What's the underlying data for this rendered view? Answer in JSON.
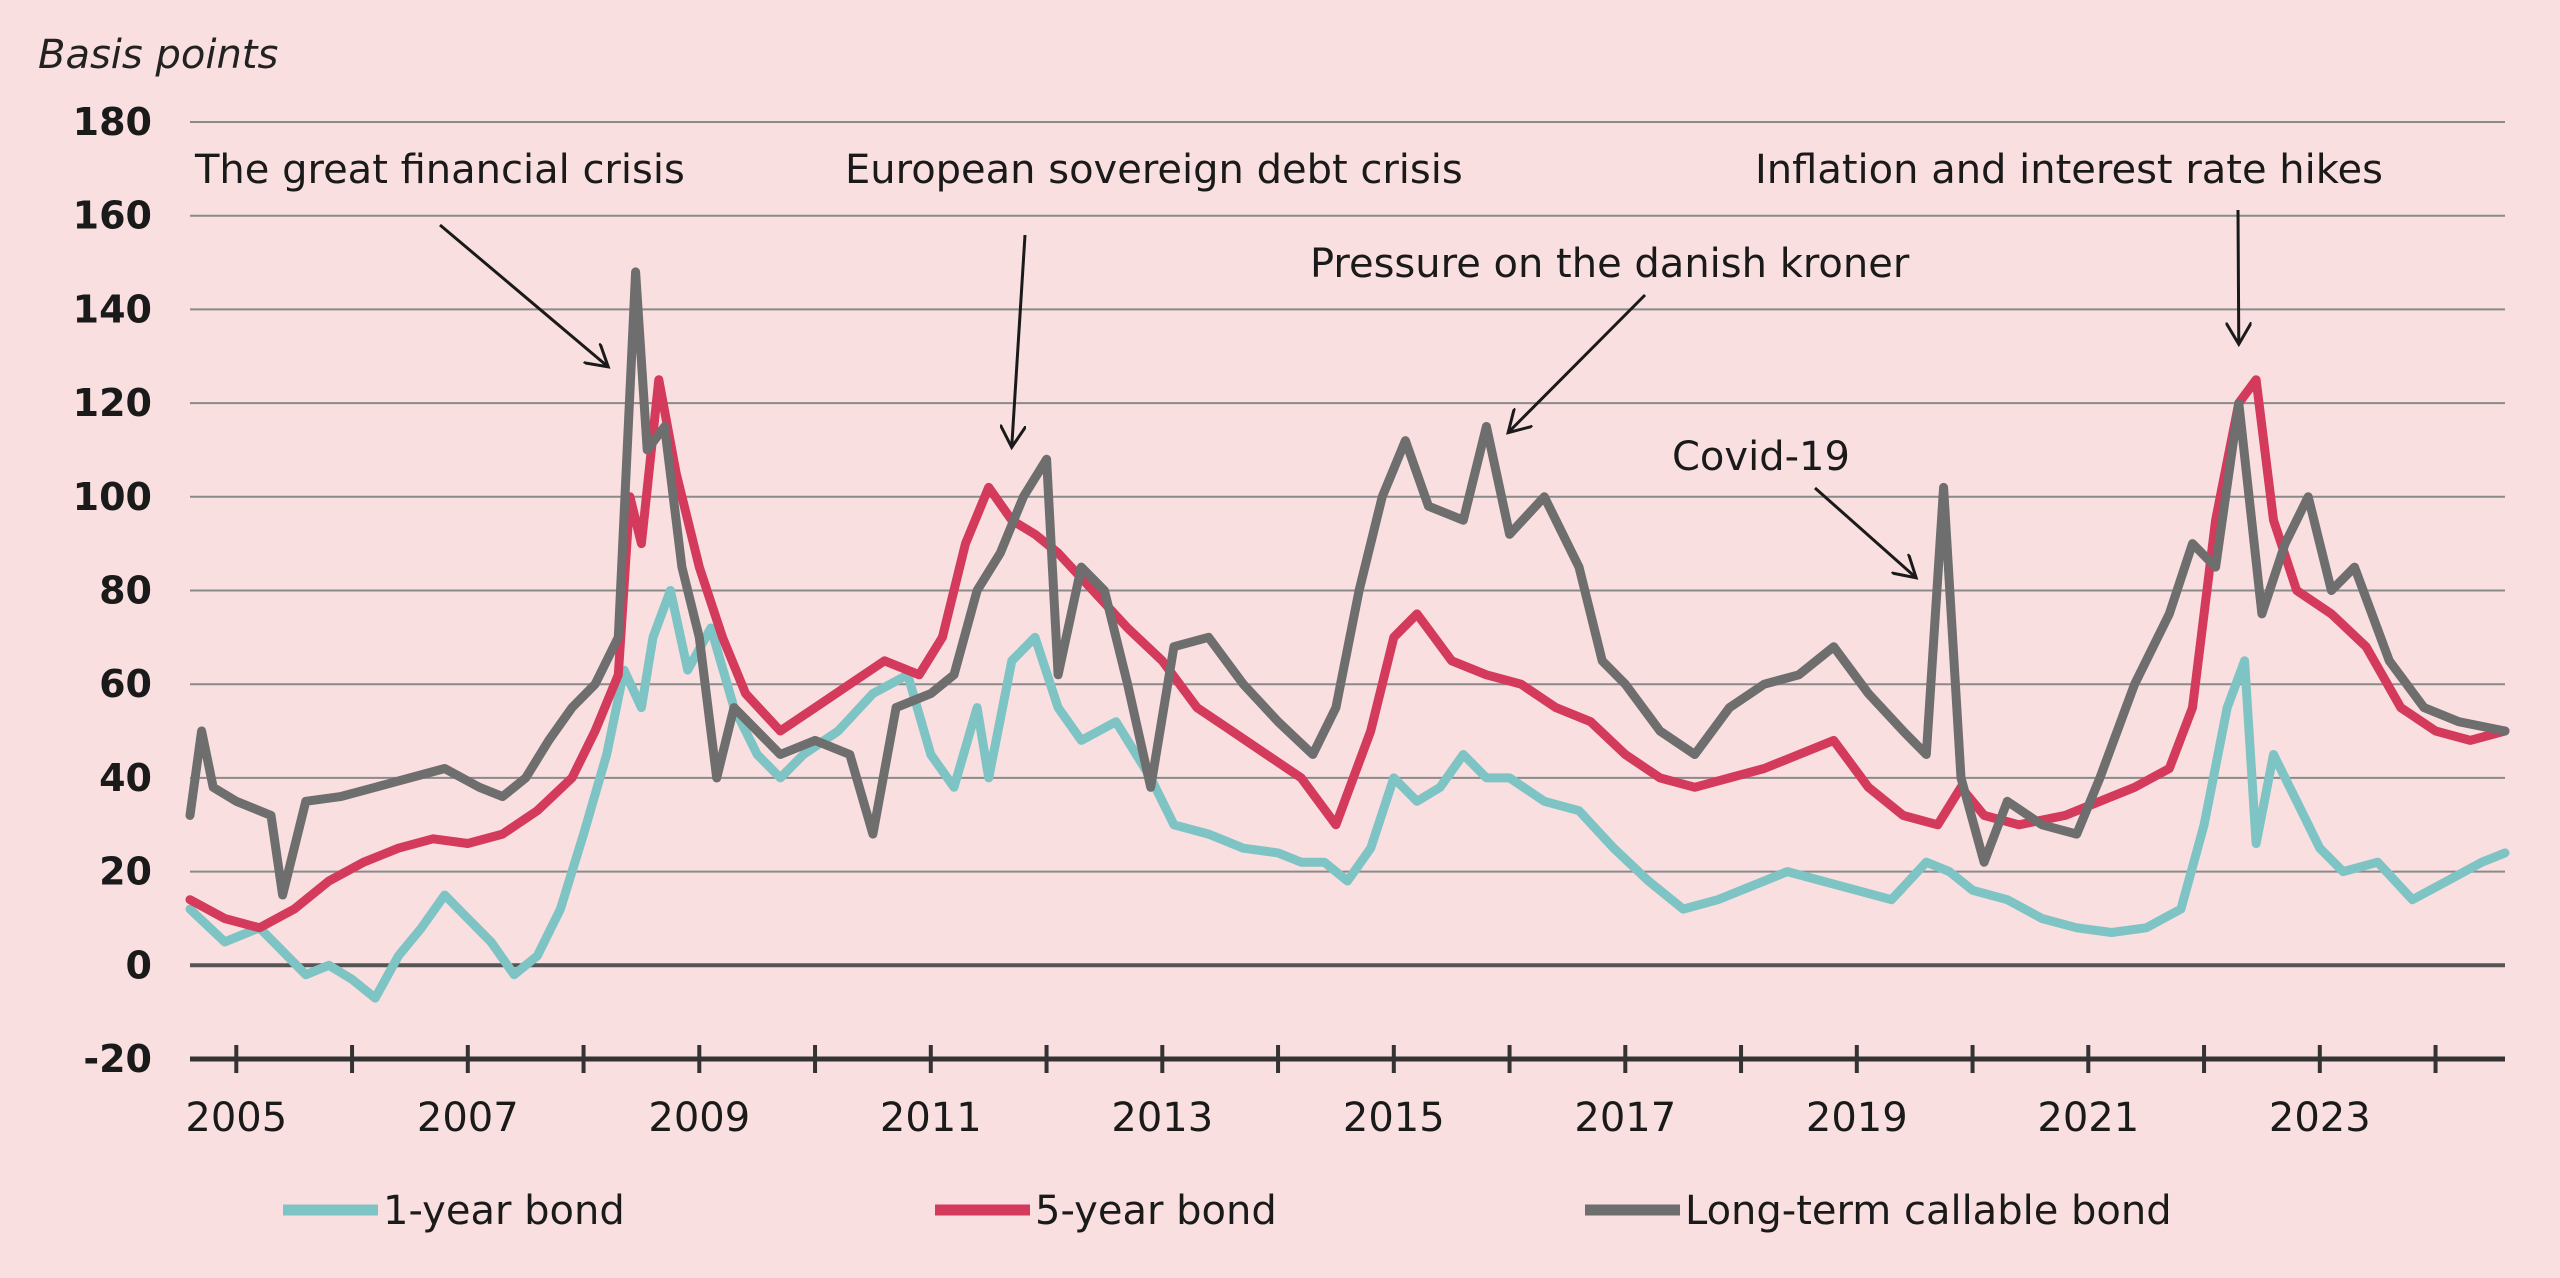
{
  "chart_data": {
    "type": "line",
    "ylabel": "Basis points",
    "ylim": [
      -20,
      180
    ],
    "yticks": [
      -20,
      0,
      20,
      40,
      60,
      80,
      100,
      120,
      140,
      160,
      180
    ],
    "xlim": [
      2004.6,
      2024.6
    ],
    "xticks": [
      "2005",
      "2007",
      "2009",
      "2011",
      "2013",
      "2015",
      "2017",
      "2019",
      "2021",
      "2023"
    ],
    "grid": true,
    "legend": "bottom",
    "colors": {
      "1-year bond": "#7ec4c4",
      "5-year bond": "#d43a5b",
      "Long-term callable bond": "#6e6e6e"
    },
    "annotations": [
      {
        "text": "The great financial crisis",
        "arrow_to": [
          2008.2,
          128
        ]
      },
      {
        "text": "European sovereign debt crisis",
        "arrow_to": [
          2011.7,
          111
        ]
      },
      {
        "text": "Pressure on the danish kroner",
        "arrow_to": [
          2016.0,
          114
        ]
      },
      {
        "text": "Covid-19",
        "arrow_to": [
          2019.5,
          83
        ]
      },
      {
        "text": "Inflation and interest rate hikes",
        "arrow_to": [
          2022.3,
          133
        ]
      }
    ],
    "series": [
      {
        "name": "1-year bond",
        "points": [
          [
            2004.6,
            12
          ],
          [
            2004.9,
            5
          ],
          [
            2005.2,
            8
          ],
          [
            2005.4,
            3
          ],
          [
            2005.6,
            -2
          ],
          [
            2005.8,
            0
          ],
          [
            2006.0,
            -3
          ],
          [
            2006.2,
            -7
          ],
          [
            2006.4,
            2
          ],
          [
            2006.6,
            8
          ],
          [
            2006.8,
            15
          ],
          [
            2007.0,
            10
          ],
          [
            2007.2,
            5
          ],
          [
            2007.4,
            -2
          ],
          [
            2007.6,
            2
          ],
          [
            2007.8,
            12
          ],
          [
            2008.0,
            28
          ],
          [
            2008.2,
            45
          ],
          [
            2008.35,
            63
          ],
          [
            2008.5,
            55
          ],
          [
            2008.6,
            70
          ],
          [
            2008.75,
            80
          ],
          [
            2008.9,
            63
          ],
          [
            2009.1,
            72
          ],
          [
            2009.3,
            55
          ],
          [
            2009.5,
            45
          ],
          [
            2009.7,
            40
          ],
          [
            2009.9,
            45
          ],
          [
            2010.2,
            50
          ],
          [
            2010.5,
            58
          ],
          [
            2010.8,
            62
          ],
          [
            2011.0,
            45
          ],
          [
            2011.2,
            38
          ],
          [
            2011.4,
            55
          ],
          [
            2011.5,
            40
          ],
          [
            2011.7,
            65
          ],
          [
            2011.9,
            70
          ],
          [
            2012.1,
            55
          ],
          [
            2012.3,
            48
          ],
          [
            2012.6,
            52
          ],
          [
            2012.9,
            40
          ],
          [
            2013.1,
            30
          ],
          [
            2013.4,
            28
          ],
          [
            2013.7,
            25
          ],
          [
            2014.0,
            24
          ],
          [
            2014.2,
            22
          ],
          [
            2014.4,
            22
          ],
          [
            2014.6,
            18
          ],
          [
            2014.8,
            25
          ],
          [
            2015.0,
            40
          ],
          [
            2015.2,
            35
          ],
          [
            2015.4,
            38
          ],
          [
            2015.6,
            45
          ],
          [
            2015.8,
            40
          ],
          [
            2016.0,
            40
          ],
          [
            2016.3,
            35
          ],
          [
            2016.6,
            33
          ],
          [
            2016.9,
            25
          ],
          [
            2017.2,
            18
          ],
          [
            2017.5,
            12
          ],
          [
            2017.8,
            14
          ],
          [
            2018.1,
            17
          ],
          [
            2018.4,
            20
          ],
          [
            2018.7,
            18
          ],
          [
            2019.0,
            16
          ],
          [
            2019.3,
            14
          ],
          [
            2019.6,
            22
          ],
          [
            2019.8,
            20
          ],
          [
            2020.0,
            16
          ],
          [
            2020.3,
            14
          ],
          [
            2020.6,
            10
          ],
          [
            2020.9,
            8
          ],
          [
            2021.2,
            7
          ],
          [
            2021.5,
            8
          ],
          [
            2021.8,
            12
          ],
          [
            2022.0,
            30
          ],
          [
            2022.2,
            55
          ],
          [
            2022.35,
            65
          ],
          [
            2022.45,
            26
          ],
          [
            2022.6,
            45
          ],
          [
            2022.8,
            35
          ],
          [
            2023.0,
            25
          ],
          [
            2023.2,
            20
          ],
          [
            2023.5,
            22
          ],
          [
            2023.8,
            14
          ],
          [
            2024.1,
            18
          ],
          [
            2024.4,
            22
          ],
          [
            2024.6,
            24
          ]
        ]
      },
      {
        "name": "5-year bond",
        "points": [
          [
            2004.6,
            14
          ],
          [
            2004.9,
            10
          ],
          [
            2005.2,
            8
          ],
          [
            2005.5,
            12
          ],
          [
            2005.8,
            18
          ],
          [
            2006.1,
            22
          ],
          [
            2006.4,
            25
          ],
          [
            2006.7,
            27
          ],
          [
            2007.0,
            26
          ],
          [
            2007.3,
            28
          ],
          [
            2007.6,
            33
          ],
          [
            2007.9,
            40
          ],
          [
            2008.1,
            50
          ],
          [
            2008.3,
            62
          ],
          [
            2008.4,
            100
          ],
          [
            2008.5,
            90
          ],
          [
            2008.65,
            125
          ],
          [
            2008.8,
            105
          ],
          [
            2009.0,
            85
          ],
          [
            2009.2,
            70
          ],
          [
            2009.4,
            58
          ],
          [
            2009.7,
            50
          ],
          [
            2010.0,
            55
          ],
          [
            2010.3,
            60
          ],
          [
            2010.6,
            65
          ],
          [
            2010.9,
            62
          ],
          [
            2011.1,
            70
          ],
          [
            2011.3,
            90
          ],
          [
            2011.5,
            102
          ],
          [
            2011.7,
            95
          ],
          [
            2011.9,
            92
          ],
          [
            2012.1,
            88
          ],
          [
            2012.4,
            80
          ],
          [
            2012.7,
            72
          ],
          [
            2013.0,
            65
          ],
          [
            2013.3,
            55
          ],
          [
            2013.6,
            50
          ],
          [
            2013.9,
            45
          ],
          [
            2014.2,
            40
          ],
          [
            2014.5,
            30
          ],
          [
            2014.8,
            50
          ],
          [
            2015.0,
            70
          ],
          [
            2015.2,
            75
          ],
          [
            2015.5,
            65
          ],
          [
            2015.8,
            62
          ],
          [
            2016.1,
            60
          ],
          [
            2016.4,
            55
          ],
          [
            2016.7,
            52
          ],
          [
            2017.0,
            45
          ],
          [
            2017.3,
            40
          ],
          [
            2017.6,
            38
          ],
          [
            2017.9,
            40
          ],
          [
            2018.2,
            42
          ],
          [
            2018.5,
            45
          ],
          [
            2018.8,
            48
          ],
          [
            2019.1,
            38
          ],
          [
            2019.4,
            32
          ],
          [
            2019.7,
            30
          ],
          [
            2019.9,
            38
          ],
          [
            2020.1,
            32
          ],
          [
            2020.4,
            30
          ],
          [
            2020.8,
            32
          ],
          [
            2021.1,
            35
          ],
          [
            2021.4,
            38
          ],
          [
            2021.7,
            42
          ],
          [
            2021.9,
            55
          ],
          [
            2022.1,
            95
          ],
          [
            2022.3,
            120
          ],
          [
            2022.45,
            125
          ],
          [
            2022.6,
            95
          ],
          [
            2022.8,
            80
          ],
          [
            2023.1,
            75
          ],
          [
            2023.4,
            68
          ],
          [
            2023.7,
            55
          ],
          [
            2024.0,
            50
          ],
          [
            2024.3,
            48
          ],
          [
            2024.6,
            50
          ]
        ]
      },
      {
        "name": "Long-term callable bond",
        "points": [
          [
            2004.6,
            32
          ],
          [
            2004.7,
            50
          ],
          [
            2004.8,
            38
          ],
          [
            2005.0,
            35
          ],
          [
            2005.3,
            32
          ],
          [
            2005.4,
            15
          ],
          [
            2005.6,
            35
          ],
          [
            2005.9,
            36
          ],
          [
            2006.2,
            38
          ],
          [
            2006.5,
            40
          ],
          [
            2006.8,
            42
          ],
          [
            2007.1,
            38
          ],
          [
            2007.3,
            36
          ],
          [
            2007.5,
            40
          ],
          [
            2007.7,
            48
          ],
          [
            2007.9,
            55
          ],
          [
            2008.1,
            60
          ],
          [
            2008.3,
            70
          ],
          [
            2008.45,
            148
          ],
          [
            2008.55,
            110
          ],
          [
            2008.7,
            115
          ],
          [
            2008.85,
            85
          ],
          [
            2009.0,
            70
          ],
          [
            2009.15,
            40
          ],
          [
            2009.3,
            55
          ],
          [
            2009.5,
            50
          ],
          [
            2009.7,
            45
          ],
          [
            2010.0,
            48
          ],
          [
            2010.3,
            45
          ],
          [
            2010.5,
            28
          ],
          [
            2010.7,
            55
          ],
          [
            2011.0,
            58
          ],
          [
            2011.2,
            62
          ],
          [
            2011.4,
            80
          ],
          [
            2011.6,
            88
          ],
          [
            2011.8,
            100
          ],
          [
            2012.0,
            108
          ],
          [
            2012.1,
            62
          ],
          [
            2012.3,
            85
          ],
          [
            2012.5,
            80
          ],
          [
            2012.7,
            60
          ],
          [
            2012.9,
            38
          ],
          [
            2013.1,
            68
          ],
          [
            2013.4,
            70
          ],
          [
            2013.7,
            60
          ],
          [
            2014.0,
            52
          ],
          [
            2014.3,
            45
          ],
          [
            2014.5,
            55
          ],
          [
            2014.7,
            80
          ],
          [
            2014.9,
            100
          ],
          [
            2015.1,
            112
          ],
          [
            2015.3,
            98
          ],
          [
            2015.6,
            95
          ],
          [
            2015.8,
            115
          ],
          [
            2016.0,
            92
          ],
          [
            2016.3,
            100
          ],
          [
            2016.6,
            85
          ],
          [
            2016.8,
            65
          ],
          [
            2017.0,
            60
          ],
          [
            2017.3,
            50
          ],
          [
            2017.6,
            45
          ],
          [
            2017.9,
            55
          ],
          [
            2018.2,
            60
          ],
          [
            2018.5,
            62
          ],
          [
            2018.8,
            68
          ],
          [
            2019.1,
            58
          ],
          [
            2019.4,
            50
          ],
          [
            2019.6,
            45
          ],
          [
            2019.75,
            102
          ],
          [
            2019.9,
            40
          ],
          [
            2020.1,
            22
          ],
          [
            2020.3,
            35
          ],
          [
            2020.6,
            30
          ],
          [
            2020.9,
            28
          ],
          [
            2021.1,
            40
          ],
          [
            2021.4,
            60
          ],
          [
            2021.7,
            75
          ],
          [
            2021.9,
            90
          ],
          [
            2022.1,
            85
          ],
          [
            2022.3,
            120
          ],
          [
            2022.5,
            75
          ],
          [
            2022.7,
            90
          ],
          [
            2022.9,
            100
          ],
          [
            2023.1,
            80
          ],
          [
            2023.3,
            85
          ],
          [
            2023.6,
            65
          ],
          [
            2023.9,
            55
          ],
          [
            2024.2,
            52
          ],
          [
            2024.6,
            50
          ]
        ]
      }
    ]
  }
}
